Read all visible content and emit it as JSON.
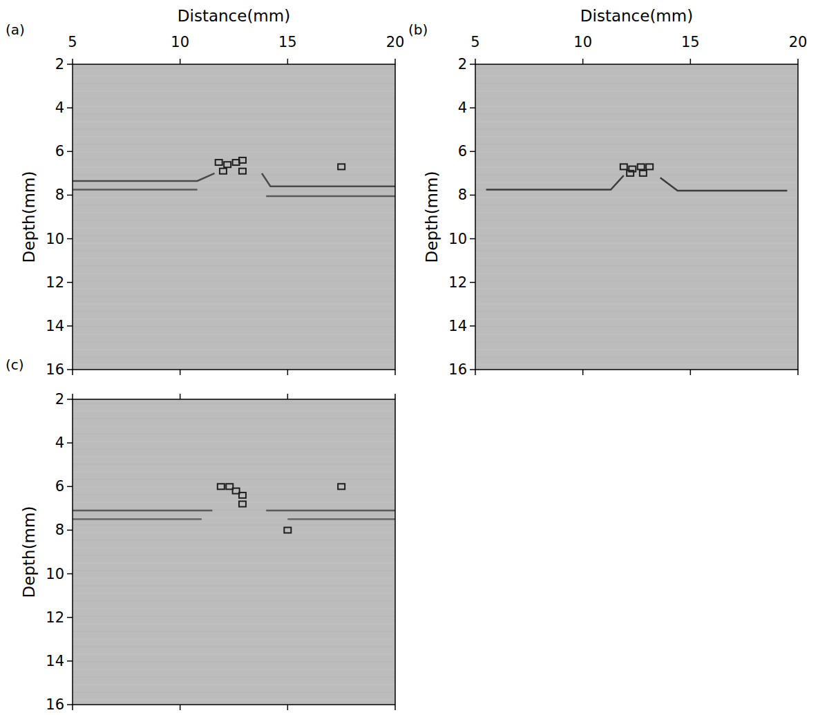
{
  "chart_data": [
    {
      "type": "image",
      "title": "(a)",
      "x_label": "Distance(mm)",
      "y_label": "Depth(mm)",
      "xlim": [
        5,
        20
      ],
      "ylim": [
        16,
        2
      ],
      "xticks": [
        5,
        10,
        15,
        20
      ],
      "yticks": [
        2,
        4,
        6,
        8,
        10,
        12,
        14,
        16
      ],
      "series": [
        {
          "type": "line",
          "color": "#4a4a4a",
          "line_style": "solid",
          "x": [
            5,
            10.8,
            11.6,
            11.9,
            13.8,
            14.2,
            20
          ],
          "values": [
            7.35,
            7.35,
            7.0,
            null,
            7.0,
            7.6,
            7.6
          ]
        },
        {
          "type": "line",
          "color": "#5a5a5a",
          "line_style": "solid",
          "x": [
            5,
            10.8,
            11.4,
            14.0,
            20
          ],
          "values": [
            7.75,
            7.75,
            null,
            8.05,
            8.05
          ]
        },
        {
          "type": "scatter",
          "color": "#1e1e1e",
          "marker": "square",
          "x": [
            11.8,
            12.2,
            12.6,
            12.9,
            12.9,
            12.0,
            17.5
          ],
          "values": [
            6.5,
            6.6,
            6.5,
            6.4,
            6.9,
            6.9,
            6.7
          ]
        }
      ]
    },
    {
      "type": "image",
      "title": "(b)",
      "x_label": "Distance(mm)",
      "y_label": "Depth(mm)",
      "xlim": [
        5,
        20
      ],
      "ylim": [
        16,
        2
      ],
      "xticks": [
        5,
        10,
        15,
        20
      ],
      "yticks": [
        2,
        4,
        6,
        8,
        10,
        12,
        14,
        16
      ],
      "series": [
        {
          "type": "line",
          "color": "#3c3c3c",
          "line_style": "solid",
          "x": [
            5.5,
            11.3,
            11.9,
            12.0,
            13.6,
            14.4,
            19.5
          ],
          "values": [
            7.75,
            7.75,
            7.1,
            null,
            7.2,
            7.8,
            7.8
          ]
        },
        {
          "type": "scatter",
          "color": "#1e1e1e",
          "marker": "square",
          "x": [
            11.9,
            12.3,
            12.7,
            13.1,
            12.2,
            12.8
          ],
          "values": [
            6.7,
            6.8,
            6.7,
            6.7,
            7.0,
            7.0
          ]
        }
      ]
    },
    {
      "type": "image",
      "title": "(c)",
      "y_label": "Depth(mm)",
      "tick_labels": "y",
      "xlim": [
        5,
        20
      ],
      "ylim": [
        16,
        2
      ],
      "xticks": [
        5,
        10,
        15,
        20
      ],
      "yticks": [
        2,
        4,
        6,
        8,
        10,
        12,
        14,
        16
      ],
      "series": [
        {
          "type": "line",
          "color": "#5a5a5a",
          "line_style": "solid",
          "x": [
            5,
            11.5,
            12.0,
            14.0,
            20
          ],
          "values": [
            7.1,
            7.1,
            null,
            7.1,
            7.1
          ]
        },
        {
          "type": "line",
          "color": "#666666",
          "line_style": "solid",
          "x": [
            5,
            11.0,
            11.5,
            15.0,
            20
          ],
          "values": [
            7.5,
            7.5,
            null,
            7.5,
            7.5
          ]
        },
        {
          "type": "scatter",
          "color": "#1e1e1e",
          "marker": "square",
          "x": [
            11.9,
            12.3,
            12.6,
            12.9,
            12.9,
            17.5,
            15.0
          ],
          "values": [
            6.0,
            6.0,
            6.2,
            6.4,
            6.8,
            6.0,
            8.0
          ]
        }
      ]
    }
  ]
}
